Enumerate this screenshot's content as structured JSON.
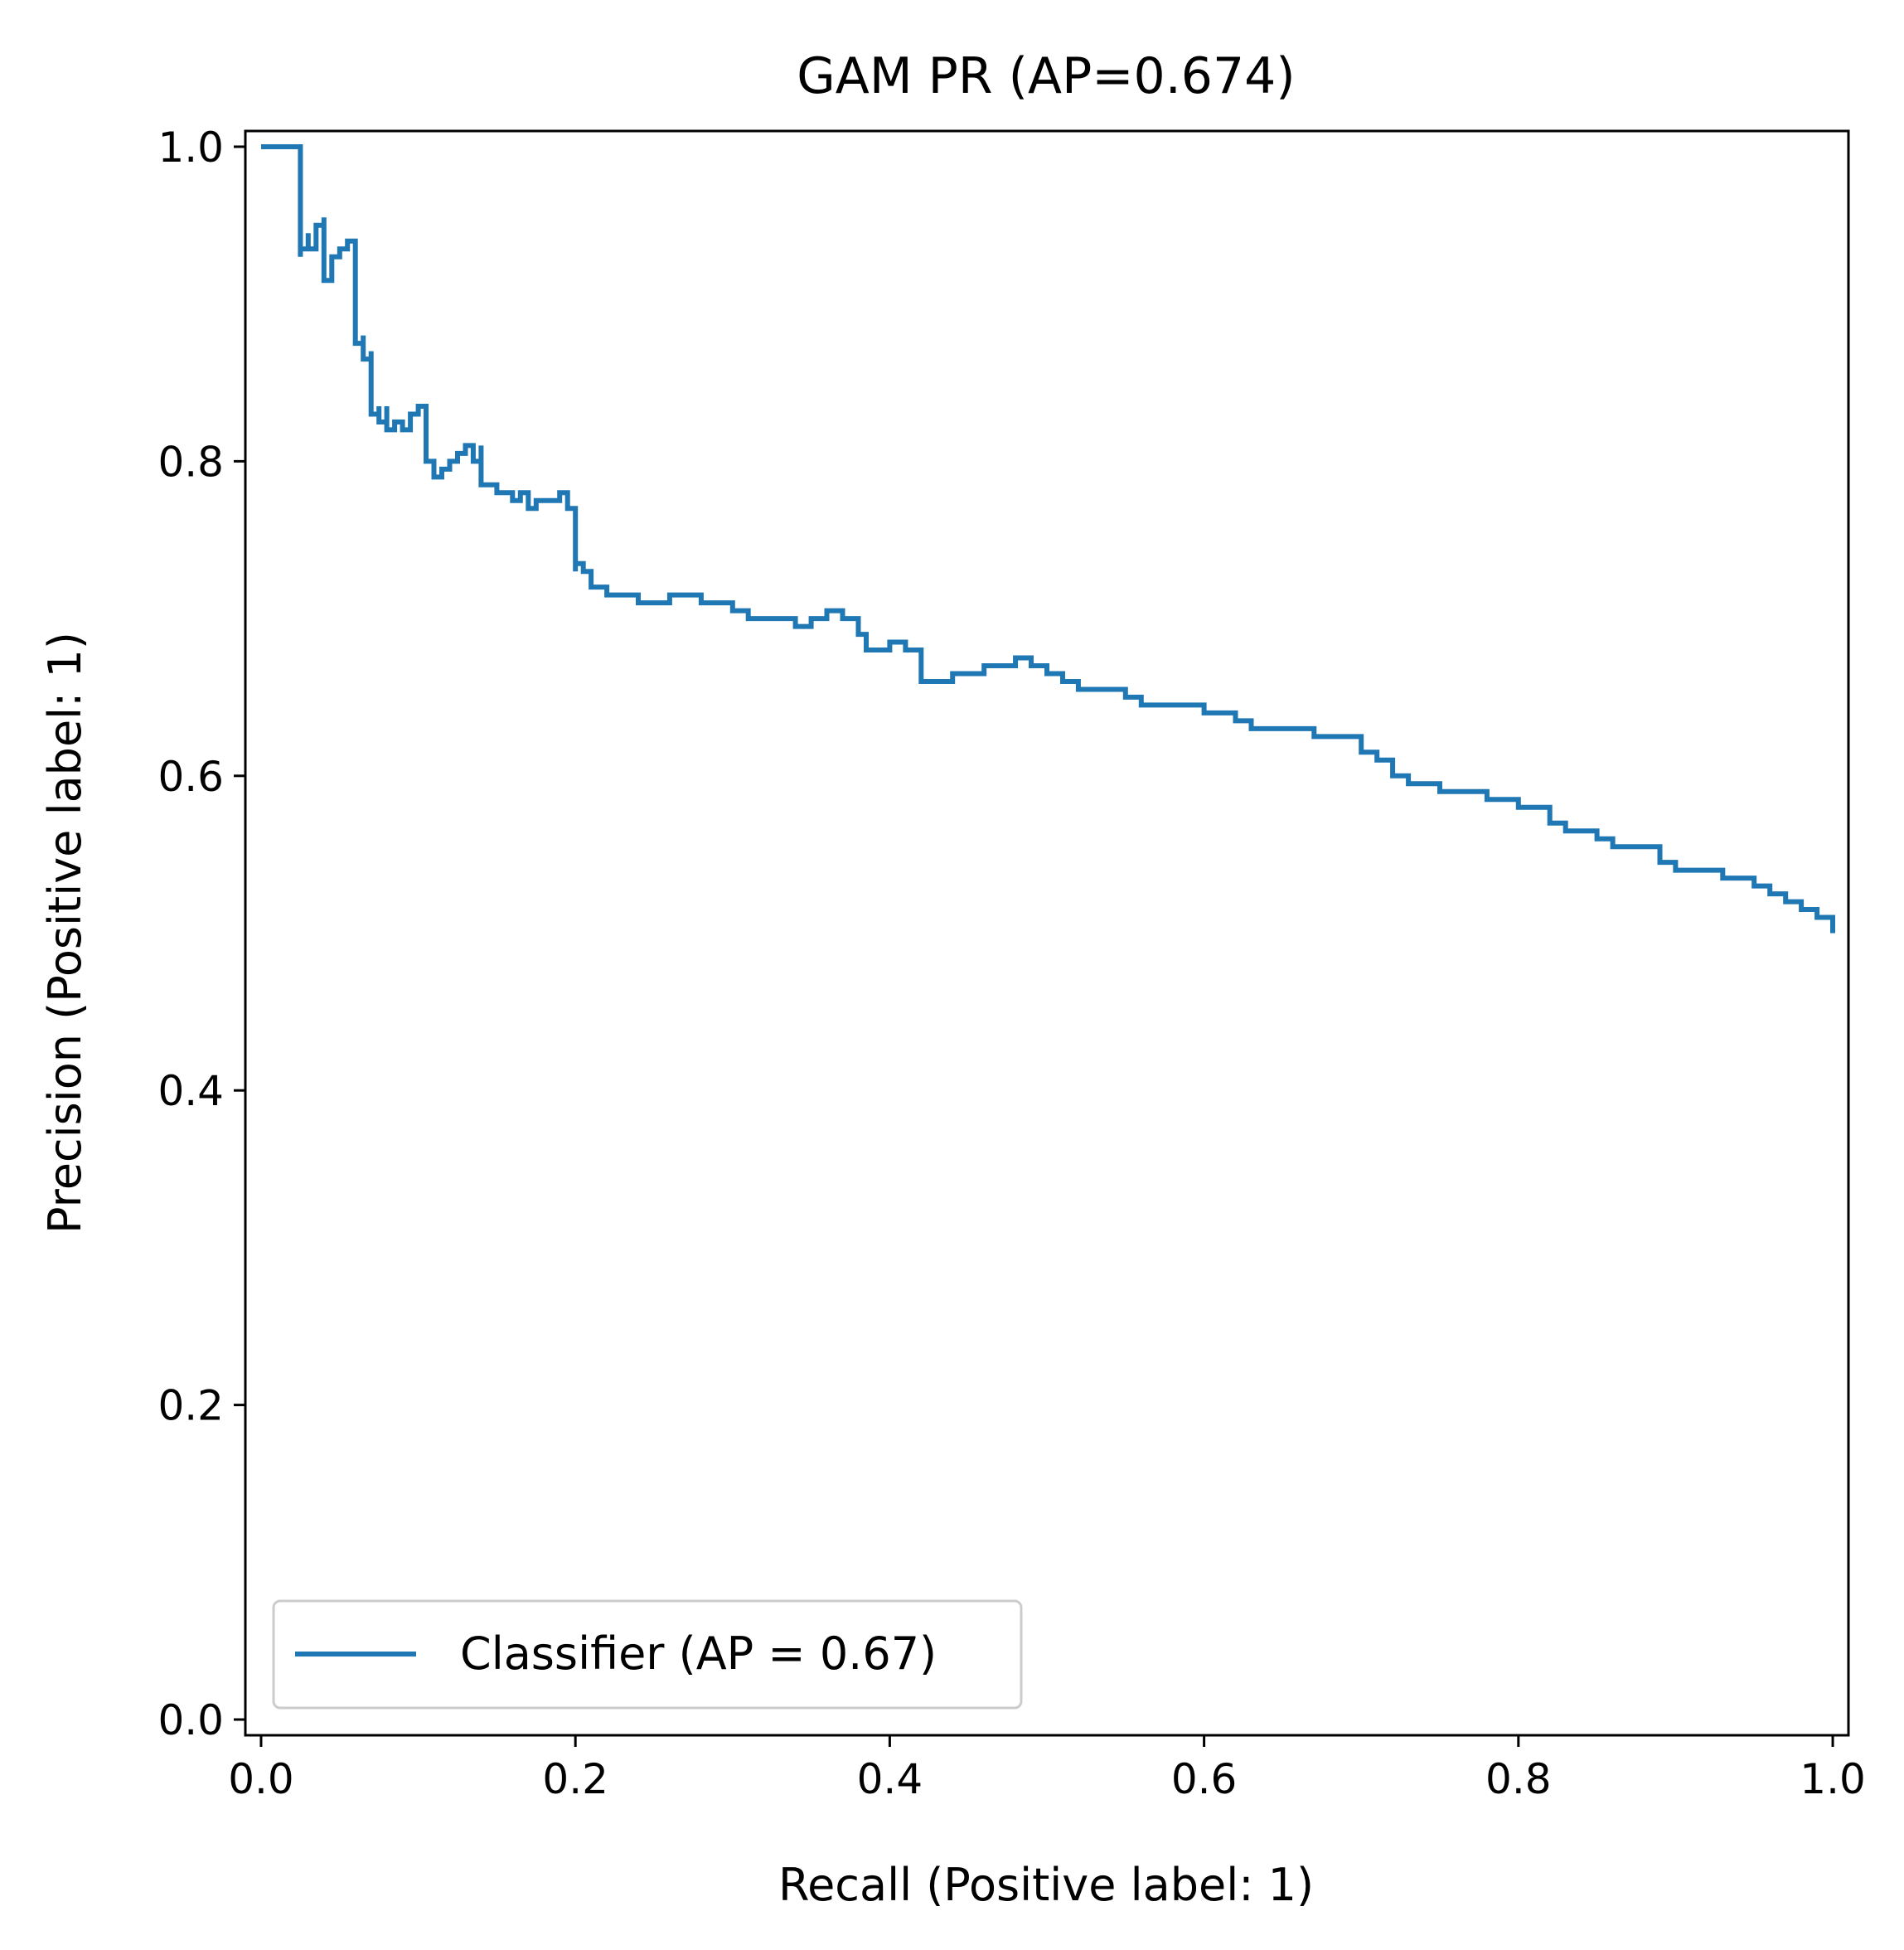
{
  "chart_data": {
    "type": "line",
    "title": "GAM PR (AP=0.674)",
    "xlabel": "Recall (Positive label: 1)",
    "ylabel": "Precision (Positive label: 1)",
    "xlim": [
      -0.01,
      1.01
    ],
    "ylim": [
      -0.01,
      1.01
    ],
    "xticks": [
      "0.0",
      "0.2",
      "0.4",
      "0.6",
      "0.8",
      "1.0"
    ],
    "yticks": [
      "0.0",
      "0.2",
      "0.4",
      "0.6",
      "0.8",
      "1.0"
    ],
    "grid": false,
    "legend": {
      "position": "lower-left",
      "entries": [
        "Classifier (AP = 0.67)"
      ]
    },
    "colors": {
      "series": "#1f77b4",
      "axes": "#000000",
      "legend_border": "#cccccc"
    },
    "series": [
      {
        "name": "Classifier (AP = 0.67)",
        "x": [
          0.0,
          0.025,
          0.025,
          0.025,
          0.03,
          0.03,
          0.035,
          0.04,
          0.04,
          0.045,
          0.05,
          0.055,
          0.06,
          0.06,
          0.065,
          0.065,
          0.07,
          0.07,
          0.075,
          0.075,
          0.08,
          0.08,
          0.085,
          0.09,
          0.095,
          0.1,
          0.105,
          0.11,
          0.11,
          0.115,
          0.12,
          0.125,
          0.13,
          0.135,
          0.14,
          0.14,
          0.145,
          0.15,
          0.16,
          0.165,
          0.17,
          0.175,
          0.18,
          0.19,
          0.195,
          0.2,
          0.2,
          0.205,
          0.21,
          0.22,
          0.23,
          0.24,
          0.25,
          0.26,
          0.27,
          0.28,
          0.29,
          0.3,
          0.31,
          0.32,
          0.33,
          0.34,
          0.35,
          0.36,
          0.37,
          0.38,
          0.385,
          0.39,
          0.4,
          0.41,
          0.42,
          0.43,
          0.44,
          0.45,
          0.46,
          0.47,
          0.48,
          0.49,
          0.5,
          0.51,
          0.52,
          0.53,
          0.54,
          0.55,
          0.56,
          0.57,
          0.58,
          0.59,
          0.6,
          0.61,
          0.62,
          0.63,
          0.64,
          0.65,
          0.66,
          0.67,
          0.68,
          0.69,
          0.7,
          0.71,
          0.72,
          0.73,
          0.74,
          0.75,
          0.76,
          0.77,
          0.78,
          0.79,
          0.8,
          0.81,
          0.82,
          0.83,
          0.84,
          0.85,
          0.86,
          0.87,
          0.88,
          0.89,
          0.9,
          0.91,
          0.92,
          0.93,
          0.94,
          0.95,
          0.96,
          0.97,
          0.98,
          0.99,
          1.0
        ],
        "y": [
          1.0,
          1.0,
          0.93,
          0.935,
          0.945,
          0.935,
          0.95,
          0.955,
          0.915,
          0.93,
          0.935,
          0.94,
          0.92,
          0.875,
          0.88,
          0.865,
          0.87,
          0.83,
          0.835,
          0.825,
          0.835,
          0.82,
          0.825,
          0.82,
          0.83,
          0.835,
          0.8,
          0.8,
          0.79,
          0.795,
          0.8,
          0.805,
          0.81,
          0.8,
          0.81,
          0.785,
          0.785,
          0.78,
          0.775,
          0.78,
          0.77,
          0.775,
          0.775,
          0.78,
          0.77,
          0.73,
          0.735,
          0.73,
          0.72,
          0.715,
          0.715,
          0.71,
          0.71,
          0.715,
          0.715,
          0.71,
          0.71,
          0.705,
          0.7,
          0.7,
          0.7,
          0.695,
          0.7,
          0.705,
          0.7,
          0.69,
          0.68,
          0.68,
          0.685,
          0.68,
          0.66,
          0.66,
          0.665,
          0.665,
          0.67,
          0.67,
          0.675,
          0.67,
          0.665,
          0.66,
          0.655,
          0.655,
          0.655,
          0.65,
          0.645,
          0.645,
          0.645,
          0.645,
          0.64,
          0.64,
          0.635,
          0.63,
          0.63,
          0.63,
          0.63,
          0.625,
          0.625,
          0.625,
          0.615,
          0.61,
          0.6,
          0.595,
          0.595,
          0.59,
          0.59,
          0.59,
          0.585,
          0.585,
          0.58,
          0.58,
          0.57,
          0.565,
          0.565,
          0.56,
          0.555,
          0.555,
          0.555,
          0.545,
          0.54,
          0.54,
          0.54,
          0.535,
          0.535,
          0.53,
          0.525,
          0.52,
          0.515,
          0.51,
          0.5
        ]
      }
    ]
  }
}
